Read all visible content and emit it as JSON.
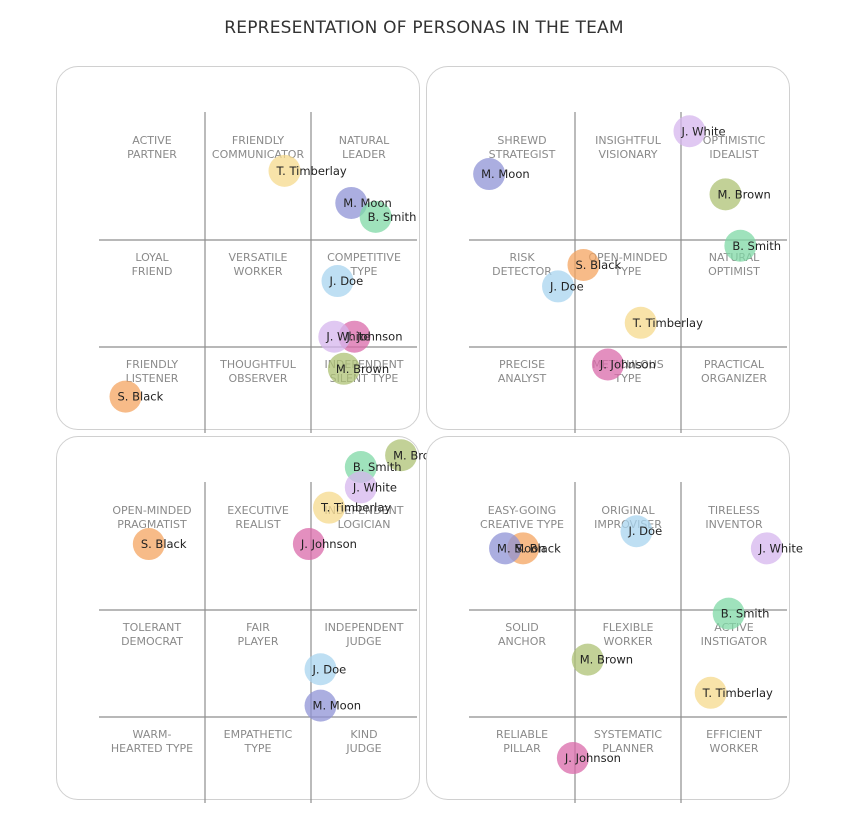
{
  "title": "REPRESENTATION OF PERSONAS IN THE TEAM",
  "colors": {
    "S. Black": "#f4a460",
    "T. Timberlay": "#f6d98c",
    "M. Moon": "#8f93d6",
    "B. Smith": "#7fd8a6",
    "J. Doe": "#a8d4ef",
    "J. White": "#d6b6ee",
    "J. Johnson": "#d96aaa",
    "M. Brown": "#adc274"
  },
  "chart_data": [
    {
      "type": "scatter",
      "grid": [
        3,
        3
      ],
      "cells": [
        [
          "ACTIVE|PARTNER",
          "FRIENDLY|COMMUNICATOR",
          "NATURAL|LEADER"
        ],
        [
          "LOYAL|FRIEND",
          "VERSATILE|WORKER",
          "COMPETITIVE|TYPE"
        ],
        [
          "FRIENDLY|LISTENER",
          "THOUGHTFUL|OBSERVER",
          "INDEPENDENT|SILENT TYPE"
        ]
      ],
      "points": [
        {
          "name": "T. Timberlay",
          "x": 1.75,
          "y": 0.55
        },
        {
          "name": "M. Moon",
          "x": 2.38,
          "y": 0.85
        },
        {
          "name": "B. Smith",
          "x": 2.61,
          "y": 0.98
        },
        {
          "name": "J. Doe",
          "x": 2.25,
          "y": 1.58
        },
        {
          "name": "J. Johnson",
          "x": 2.41,
          "y": 2.1
        },
        {
          "name": "J. White",
          "x": 2.22,
          "y": 2.1
        },
        {
          "name": "M. Brown",
          "x": 2.31,
          "y": 2.4
        },
        {
          "name": "S. Black",
          "x": 0.25,
          "y": 2.66
        }
      ]
    },
    {
      "type": "scatter",
      "grid": [
        3,
        3
      ],
      "cells": [
        [
          "SHREWD|STRATEGIST",
          "INSIGHTFUL|VISIONARY",
          "OPTIMISTIC|IDEALIST"
        ],
        [
          "RISK|DETECTOR",
          "OPEN-MINDED|TYPE",
          "NATURAL|OPTIMIST"
        ],
        [
          "PRECISE|ANALYST",
          "METICULOUS|TYPE",
          "PRACTICAL|ORGANIZER"
        ]
      ],
      "points": [
        {
          "name": "J. White",
          "x": 2.08,
          "y": 0.18
        },
        {
          "name": "M. Moon",
          "x": 0.19,
          "y": 0.58
        },
        {
          "name": "M. Brown",
          "x": 2.42,
          "y": 0.77
        },
        {
          "name": "B. Smith",
          "x": 2.56,
          "y": 1.25
        },
        {
          "name": "S. Black",
          "x": 1.08,
          "y": 1.43
        },
        {
          "name": "J. Doe",
          "x": 0.84,
          "y": 1.63
        },
        {
          "name": "T. Timberlay",
          "x": 1.62,
          "y": 1.97
        },
        {
          "name": "J. Johnson",
          "x": 1.31,
          "y": 2.36
        }
      ]
    },
    {
      "type": "scatter",
      "grid": [
        3,
        3
      ],
      "cells": [
        [
          "OPEN-MINDED|PRAGMATIST",
          "EXECUTIVE|REALIST",
          "INDEPENDENT|LOGICIAN"
        ],
        [
          "TOLERANT|DEMOCRAT",
          "FAIR|PLAYER",
          "INDEPENDENT|JUDGE"
        ],
        [
          "WARM-|HEARTED TYPE",
          "EMPATHETIC|TYPE",
          "KIND|JUDGE"
        ]
      ],
      "points": [
        {
          "name": "M. Brown",
          "x": 2.85,
          "y": -0.25
        },
        {
          "name": "B. Smith",
          "x": 2.47,
          "y": -0.14
        },
        {
          "name": "J. White",
          "x": 2.47,
          "y": 0.05
        },
        {
          "name": "T. Timberlay",
          "x": 2.17,
          "y": 0.24
        },
        {
          "name": "S. Black",
          "x": 0.47,
          "y": 0.58
        },
        {
          "name": "J. Johnson",
          "x": 1.98,
          "y": 0.58
        },
        {
          "name": "J. Doe",
          "x": 2.09,
          "y": 1.75
        },
        {
          "name": "M. Moon",
          "x": 2.09,
          "y": 2.09
        }
      ]
    },
    {
      "type": "scatter",
      "grid": [
        3,
        3
      ],
      "cells": [
        [
          "EASY-GOING|CREATIVE TYPE",
          "ORIGINAL|IMPROVISER",
          "TIRELESS|INVENTOR"
        ],
        [
          "SOLID|ANCHOR",
          "FLEXIBLE|WORKER",
          "ACTIVE|INSTIGATOR"
        ],
        [
          "RELIABLE|PILLAR",
          "SYSTEMATIC|PLANNER",
          "EFFICIENT|WORKER"
        ]
      ],
      "points": [
        {
          "name": "J. Doe",
          "x": 1.58,
          "y": 0.46
        },
        {
          "name": "S. Black",
          "x": 0.51,
          "y": 0.62
        },
        {
          "name": "M. Moon",
          "x": 0.34,
          "y": 0.62
        },
        {
          "name": "J. White",
          "x": 2.81,
          "y": 0.62
        },
        {
          "name": "B. Smith",
          "x": 2.45,
          "y": 1.23
        },
        {
          "name": "M. Brown",
          "x": 1.12,
          "y": 1.66
        },
        {
          "name": "T. Timberlay",
          "x": 2.28,
          "y": 1.97
        },
        {
          "name": "J. Johnson",
          "x": 0.98,
          "y": 2.58
        }
      ]
    }
  ]
}
